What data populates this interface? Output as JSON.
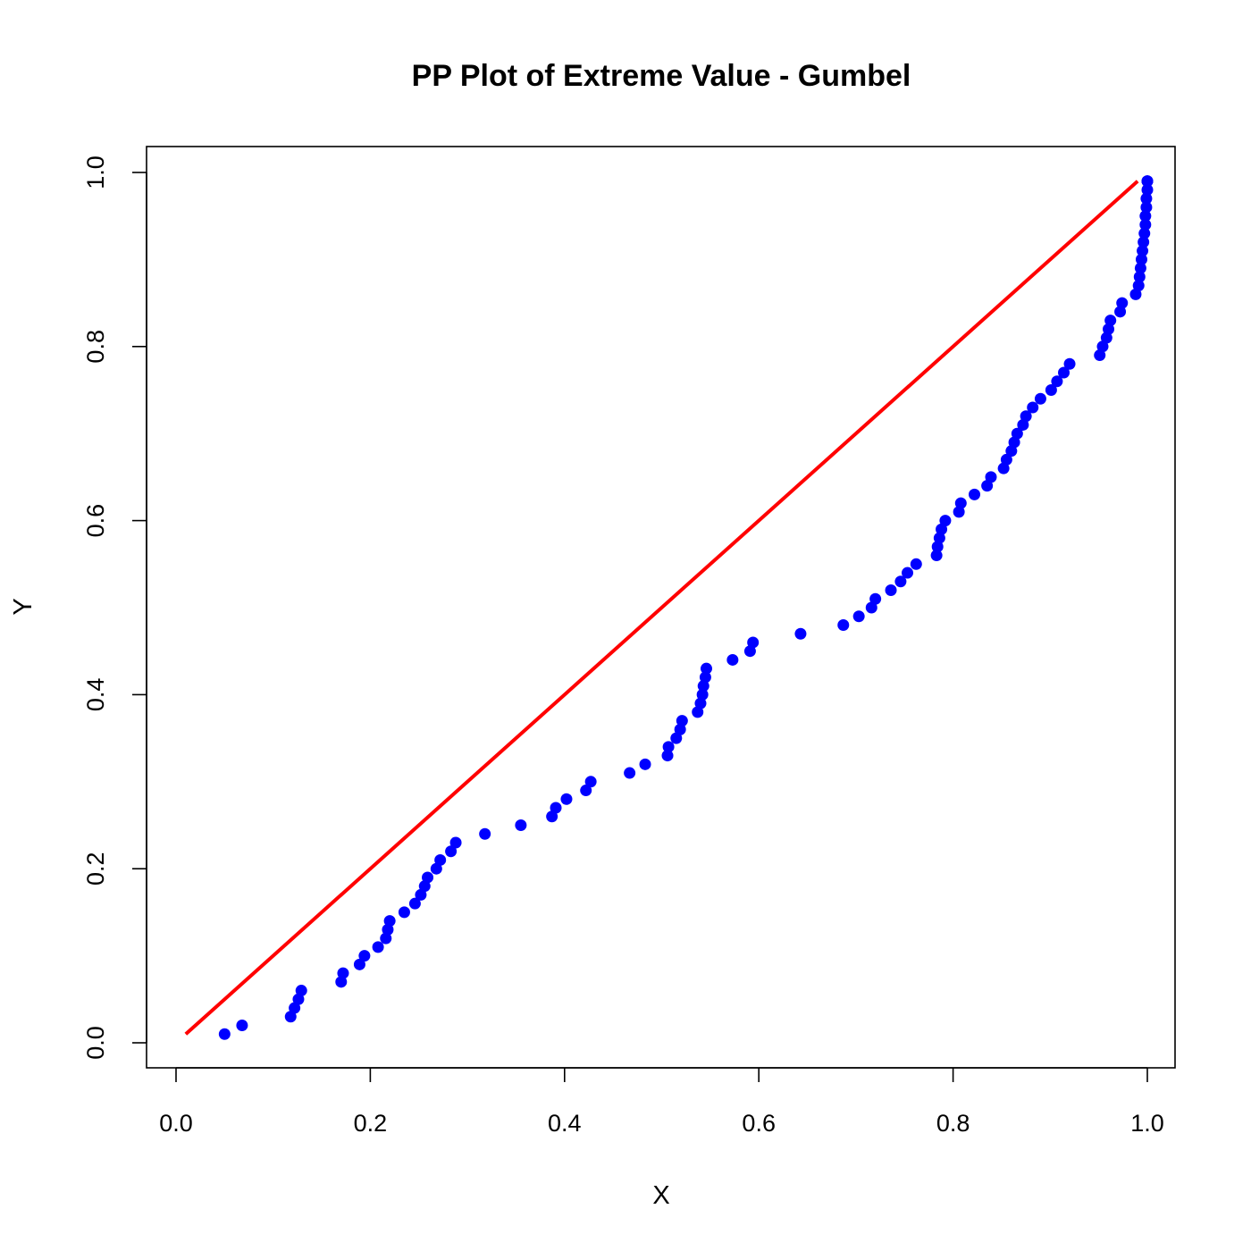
{
  "chart_data": {
    "type": "scatter",
    "title": "PP Plot of Extreme Value - Gumbel",
    "xlabel": "X",
    "ylabel": "Y",
    "xlim": [
      0,
      1
    ],
    "ylim": [
      0,
      1
    ],
    "x_ticks": [
      "0.0",
      "0.2",
      "0.4",
      "0.6",
      "0.8",
      "1.0"
    ],
    "y_ticks": [
      "0.0",
      "0.2",
      "0.4",
      "0.6",
      "0.8",
      "1.0"
    ],
    "grid": false,
    "legend": "none",
    "colors": {
      "points": "#0000ff",
      "reference_line": "#ff0000"
    },
    "reference_line": {
      "x": [
        0.01,
        0.99
      ],
      "y": [
        0.01,
        0.99
      ]
    },
    "series": [
      {
        "x": [
          0.05,
          0.068,
          0.118,
          0.122,
          0.126,
          0.129,
          0.17,
          0.172,
          0.189,
          0.194,
          0.208,
          0.216,
          0.218,
          0.22,
          0.235,
          0.246,
          0.252,
          0.256,
          0.259,
          0.268,
          0.272,
          0.283,
          0.288,
          0.318,
          0.355,
          0.387,
          0.391,
          0.402,
          0.422,
          0.427,
          0.467,
          0.483,
          0.506,
          0.507,
          0.515,
          0.519,
          0.521,
          0.537,
          0.54,
          0.542,
          0.543,
          0.545,
          0.546,
          0.573,
          0.591,
          0.594,
          0.643,
          0.687,
          0.703,
          0.716,
          0.72,
          0.736,
          0.746,
          0.753,
          0.762,
          0.783,
          0.784,
          0.786,
          0.788,
          0.792,
          0.806,
          0.808,
          0.822,
          0.835,
          0.839,
          0.852,
          0.855,
          0.86,
          0.863,
          0.866,
          0.872,
          0.875,
          0.882,
          0.89,
          0.901,
          0.907,
          0.914,
          0.92,
          0.951,
          0.954,
          0.958,
          0.96,
          0.962,
          0.972,
          0.974,
          0.988,
          0.991,
          0.992,
          0.993,
          0.994,
          0.995,
          0.996,
          0.997,
          0.998,
          0.998,
          0.999,
          0.999,
          1.0,
          1.0,
          1.0,
          1.0
        ],
        "y": [
          0.01,
          0.02,
          0.03,
          0.04,
          0.05,
          0.06,
          0.07,
          0.08,
          0.09,
          0.1,
          0.11,
          0.12,
          0.13,
          0.14,
          0.15,
          0.16,
          0.17,
          0.18,
          0.19,
          0.2,
          0.21,
          0.22,
          0.23,
          0.24,
          0.25,
          0.26,
          0.27,
          0.28,
          0.29,
          0.3,
          0.31,
          0.32,
          0.33,
          0.34,
          0.35,
          0.36,
          0.37,
          0.38,
          0.39,
          0.4,
          0.41,
          0.42,
          0.43,
          0.44,
          0.45,
          0.46,
          0.47,
          0.48,
          0.49,
          0.5,
          0.51,
          0.52,
          0.53,
          0.54,
          0.55,
          0.56,
          0.57,
          0.58,
          0.59,
          0.6,
          0.61,
          0.62,
          0.63,
          0.64,
          0.65,
          0.66,
          0.67,
          0.68,
          0.69,
          0.7,
          0.71,
          0.72,
          0.73,
          0.74,
          0.75,
          0.76,
          0.77,
          0.78,
          0.79,
          0.8,
          0.81,
          0.82,
          0.83,
          0.84,
          0.85,
          0.86,
          0.87,
          0.88,
          0.89,
          0.9,
          0.91,
          0.92,
          0.93,
          0.94,
          0.95,
          0.96,
          0.97,
          0.98,
          0.99,
          0.99,
          0.99
        ]
      }
    ]
  }
}
